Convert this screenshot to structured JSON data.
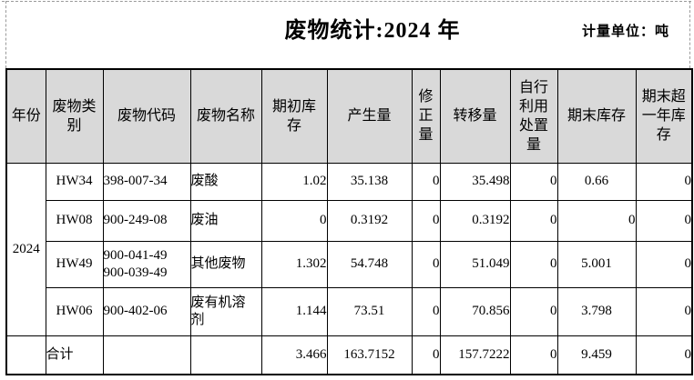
{
  "header": {
    "title": "废物统计:2024 年",
    "unit_label": "计量单位：吨"
  },
  "colors": {
    "header_bg": "#d9d9d9",
    "border": "#000000"
  },
  "table": {
    "columns": [
      {
        "key": "year",
        "label": "年份"
      },
      {
        "key": "waste-category",
        "label": "废物类\n别"
      },
      {
        "key": "waste-code",
        "label": "废物代码"
      },
      {
        "key": "waste-name",
        "label": "废物名称"
      },
      {
        "key": "begin-stock",
        "label": "期初库\n存"
      },
      {
        "key": "generated",
        "label": "产生量"
      },
      {
        "key": "corrected",
        "label": "修\n正\n量"
      },
      {
        "key": "transferred",
        "label": "转移量"
      },
      {
        "key": "self-disposed",
        "label": "自行\n利用\n处置\n量"
      },
      {
        "key": "end-stock",
        "label": "期末库存"
      },
      {
        "key": "end-stock-over-year",
        "label": "期末超\n一年库\n存"
      }
    ],
    "year_cell": {
      "value": "2024",
      "rowspan": 4
    },
    "rows": [
      {
        "cells": [
          "HW34",
          "398-007-34",
          "废酸",
          "1.02",
          "35.138",
          "0",
          "35.498",
          "0",
          "0.66",
          "0"
        ]
      },
      {
        "cells": [
          "HW08",
          "900-249-08",
          "废油",
          "0",
          "0.3192",
          "0",
          "0.3192",
          "0",
          "0",
          "0"
        ]
      },
      {
        "cells": [
          "HW49",
          "900-041-49\n900-039-49",
          "其他废物",
          "1.302",
          "54.748",
          "0",
          "51.049",
          "0",
          "5.001",
          "0"
        ]
      },
      {
        "cells": [
          "HW06",
          "900-402-06",
          "废有机溶\n剂",
          "1.144",
          "73.51",
          "0",
          "70.856",
          "0",
          "3.798",
          "0"
        ]
      }
    ],
    "total_row": {
      "label": "合计",
      "cells": [
        "",
        "",
        "3.466",
        "163.7152",
        "0",
        "157.7222",
        "0",
        "9.459",
        "0"
      ]
    }
  }
}
